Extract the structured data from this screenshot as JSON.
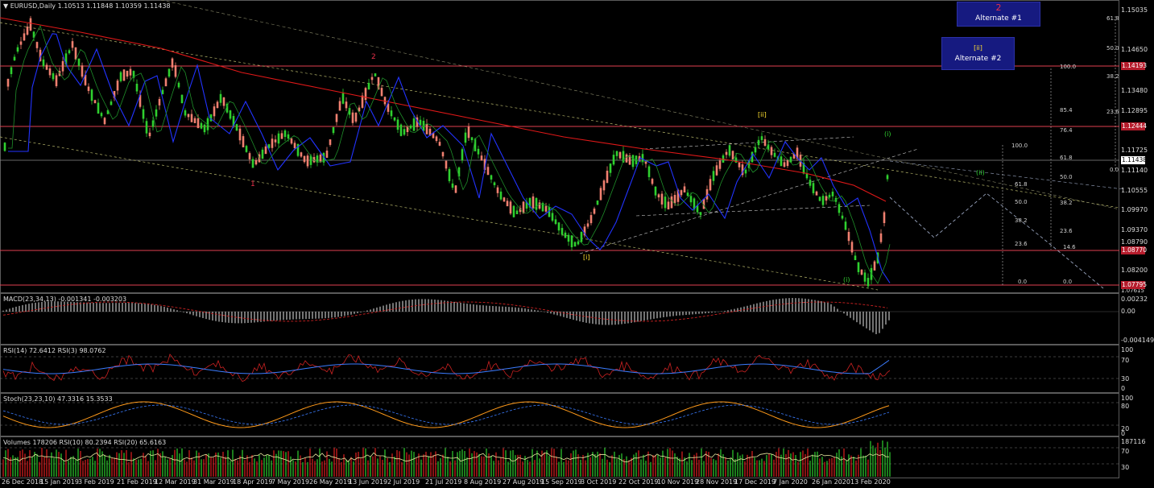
{
  "main_chart": {
    "title": "▼ EURUSD,Daily  1.10513 1.11848 1.10359 1.11438",
    "price_axis": [
      "1.15035",
      "1.14650",
      "1.13480",
      "1.12895",
      "1.11725",
      "1.11140",
      "1.10555",
      "1.09970",
      "1.09370",
      "1.08790",
      "1.08200",
      "1.07615"
    ],
    "price_tags": {
      "t1": "1.14193",
      "t2": "1.12444",
      "t3": "1.11438",
      "t4": "1.08770",
      "t5": "1.07795"
    },
    "alt1": {
      "number": "2",
      "label": "Alternate #1"
    },
    "alt2": {
      "number": "[ii]",
      "label": "Alternate #2"
    },
    "wave_labels": {
      "w2_2019": "2",
      "w1_2019": "1",
      "ii_dec": "[ii]",
      "i_sep": "[i]",
      "i_paren_right": "(i)",
      "ii_paren_proj": "(ii)",
      "i_paren_low": "(i)"
    },
    "fib_right": {
      "a": "61.8",
      "b": "50.0",
      "c": "38.2",
      "d": "100.0",
      "e": "23.6",
      "f": "0.0"
    },
    "fib_mid1": {
      "a": "100.0",
      "b": "61.8",
      "c": "50.0",
      "d": "38.2",
      "e": "23.6",
      "f": "0.0"
    },
    "fib_mid2": {
      "a": "85.4",
      "b": "76.4",
      "c": "61.8",
      "d": "50.0",
      "e": "38.2",
      "f": "23.6",
      "g": "14.6",
      "h": "0.0"
    }
  },
  "macd": {
    "title": "MACD(23,34,13) -0.001341 -0.003203",
    "axis": [
      "0.00232",
      "0.00",
      "-0.004149"
    ]
  },
  "rsi": {
    "title": "RSI(14) 72.6412  RSI(3) 98.0762",
    "axis": [
      "100",
      "70",
      "30",
      "0"
    ]
  },
  "stoch": {
    "title": "Stoch(23,23,10) 47.3316 15.3533",
    "axis": [
      "100",
      "80",
      "20",
      "0"
    ]
  },
  "volumes": {
    "title": "Volumes 178206  RSI(10) 80.2394  RSI(20) 65.6163",
    "axis": [
      "187116",
      "70",
      "30"
    ]
  },
  "dates": [
    "26 Dec 2018",
    "15 Jan 2019",
    "3 Feb 2019",
    "21 Feb 2019",
    "12 Mar 2019",
    "31 Mar 2019",
    "18 Apr 2019",
    "7 May 2019",
    "26 May 2019",
    "13 Jun 2019",
    "2 Jul 2019",
    "21 Jul 2019",
    "8 Aug 2019",
    "27 Aug 2019",
    "15 Sep 2019",
    "3 Oct 2019",
    "22 Oct 2019",
    "10 Nov 2019",
    "28 Nov 2019",
    "17 Dec 2019",
    "7 Jan 2020",
    "26 Jan 2020",
    "13 Feb 2020"
  ],
  "colors": {
    "bull": "#2fd02f",
    "bear": "#f08070",
    "ma_red": "#e01818",
    "ma_blue": "#2233ff",
    "level": "#e04050",
    "accent_box": "#161a80"
  }
}
